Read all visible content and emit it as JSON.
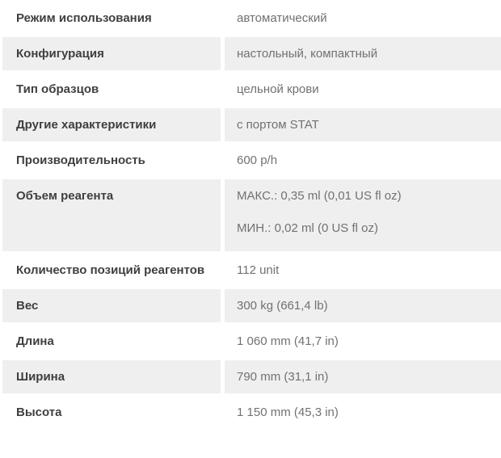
{
  "table": {
    "rows": [
      {
        "label": "Режим использования",
        "values": [
          "автоматический"
        ]
      },
      {
        "label": "Конфигурация",
        "values": [
          "настольный, компактный"
        ]
      },
      {
        "label": "Тип образцов",
        "values": [
          "цельной крови"
        ]
      },
      {
        "label": "Другие характеристики",
        "values": [
          "с портом STAT"
        ]
      },
      {
        "label": "Производительность",
        "values": [
          "600 p/h"
        ]
      },
      {
        "label": "Объем реагента",
        "values": [
          "МАКС.: 0,35 ml (0,01 US fl oz)",
          "МИН.: 0,02 ml (0 US fl oz)"
        ]
      },
      {
        "label": "Количество позиций реагентов",
        "values": [
          "112 unit"
        ]
      },
      {
        "label": "Вес",
        "values": [
          "300 kg (661,4 lb)"
        ]
      },
      {
        "label": "Длина",
        "values": [
          "1 060 mm (41,7 in)"
        ]
      },
      {
        "label": "Ширина",
        "values": [
          "790 mm (31,1 in)"
        ]
      },
      {
        "label": "Высота",
        "values": [
          "1 150 mm (45,3 in)"
        ]
      }
    ],
    "colors": {
      "row_alt_bg": "#efefef",
      "label_text": "#3f3f3f",
      "value_text": "#717171"
    }
  }
}
